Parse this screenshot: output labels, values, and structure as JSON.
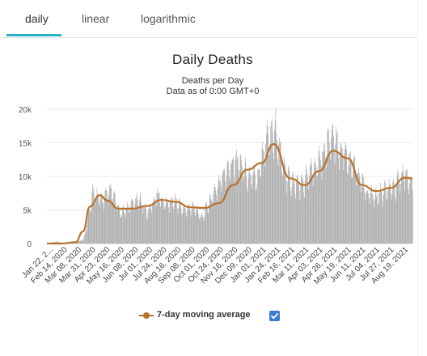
{
  "tabs": [
    {
      "label": "daily",
      "active": true
    },
    {
      "label": "linear",
      "active": false
    },
    {
      "label": "logarithmic",
      "active": false
    }
  ],
  "colors": {
    "accent": "#26b5c6",
    "bars": "#a8a8a8",
    "average": "#b8722c",
    "checkbox": "#3c7dd0"
  },
  "chart_data": {
    "type": "bar",
    "title": "Daily Deaths",
    "subtitle_lines": [
      "Deaths per Day",
      "Data as of 0:00 GMT+0"
    ],
    "xlabel": "",
    "ylabel": "",
    "ylim": [
      0,
      20000
    ],
    "y_ticks": [
      0,
      5000,
      10000,
      15000,
      20000
    ],
    "y_tick_labels": [
      "0",
      "5k",
      "10k",
      "15k",
      "20k"
    ],
    "x_tick_labels": [
      "Jan 22, 2...",
      "Feb 14, 2020",
      "Mar 08, 2020",
      "Mar 31, 2020",
      "Apr 23, 2020",
      "May 16, 2020",
      "Jun 08, 2020",
      "Jul 01, 2020",
      "Jul 24, 2020",
      "Aug 16, 2020",
      "Sep 08, 2020",
      "Oct 01, 2020",
      "Oct 24, 2020",
      "Nov 16, 2020",
      "Dec 09, 2020",
      "Jan 01, 2021",
      "Jan 24, 2021",
      "Feb 16, 2021",
      "Mar 11, 2021",
      "Apr 03, 2021",
      "Apr 26, 2021",
      "May 19, 2021",
      "Jun 11, 2021",
      "Jul 04, 2021",
      "Jul 27, 2021",
      "Aug 19, 2021"
    ],
    "grid": true,
    "legend": {
      "position": "bottom",
      "entries": [
        {
          "name": "7-day moving average",
          "checked": true
        }
      ]
    },
    "series": [
      {
        "name": "",
        "kind": "bar",
        "values": [
          0,
          300,
          0,
          100,
          600,
          7500,
          6500,
          8000,
          4500,
          5500,
          7000,
          4500,
          7500,
          6000,
          6500,
          5000,
          5500,
          4000,
          7000,
          9500,
          12000,
          12500,
          10000,
          10000,
          16000,
          17000,
          10500,
          9000,
          9000,
          11500,
          13000,
          16000,
          14500,
          13000,
          10500,
          7500,
          7000,
          8000,
          8500,
          10500,
          9000
        ]
      },
      {
        "name": "7-day moving average",
        "kind": "line",
        "x": [
          "Jan 22, 2020",
          "Feb 14, 2020",
          "Mar 08, 2020",
          "Mar 20, 2020",
          "Mar 31, 2020",
          "Apr 16, 2020",
          "Apr 28, 2020",
          "May 16, 2020",
          "Jun 08, 2020",
          "Jul 01, 2020",
          "Jul 24, 2020",
          "Aug 16, 2020",
          "Sep 08, 2020",
          "Oct 01, 2020",
          "Oct 24, 2020",
          "Nov 16, 2020",
          "Dec 09, 2020",
          "Jan 01, 2021",
          "Jan 20, 2021",
          "Feb 16, 2021",
          "Mar 11, 2021",
          "Apr 03, 2021",
          "Apr 26, 2021",
          "May 19, 2021",
          "Jun 11, 2021",
          "Jul 04, 2021",
          "Jul 27, 2021",
          "Aug 19, 2021",
          "Aug 31, 2021"
        ],
        "values": [
          0,
          0,
          200,
          1800,
          5500,
          7200,
          6400,
          5200,
          5200,
          5600,
          6500,
          6200,
          5400,
          5300,
          6000,
          8700,
          11000,
          12000,
          14800,
          9700,
          8700,
          10800,
          13800,
          12700,
          8700,
          7800,
          8300,
          9800,
          9700
        ]
      }
    ]
  },
  "legend_label": "7-day moving average"
}
